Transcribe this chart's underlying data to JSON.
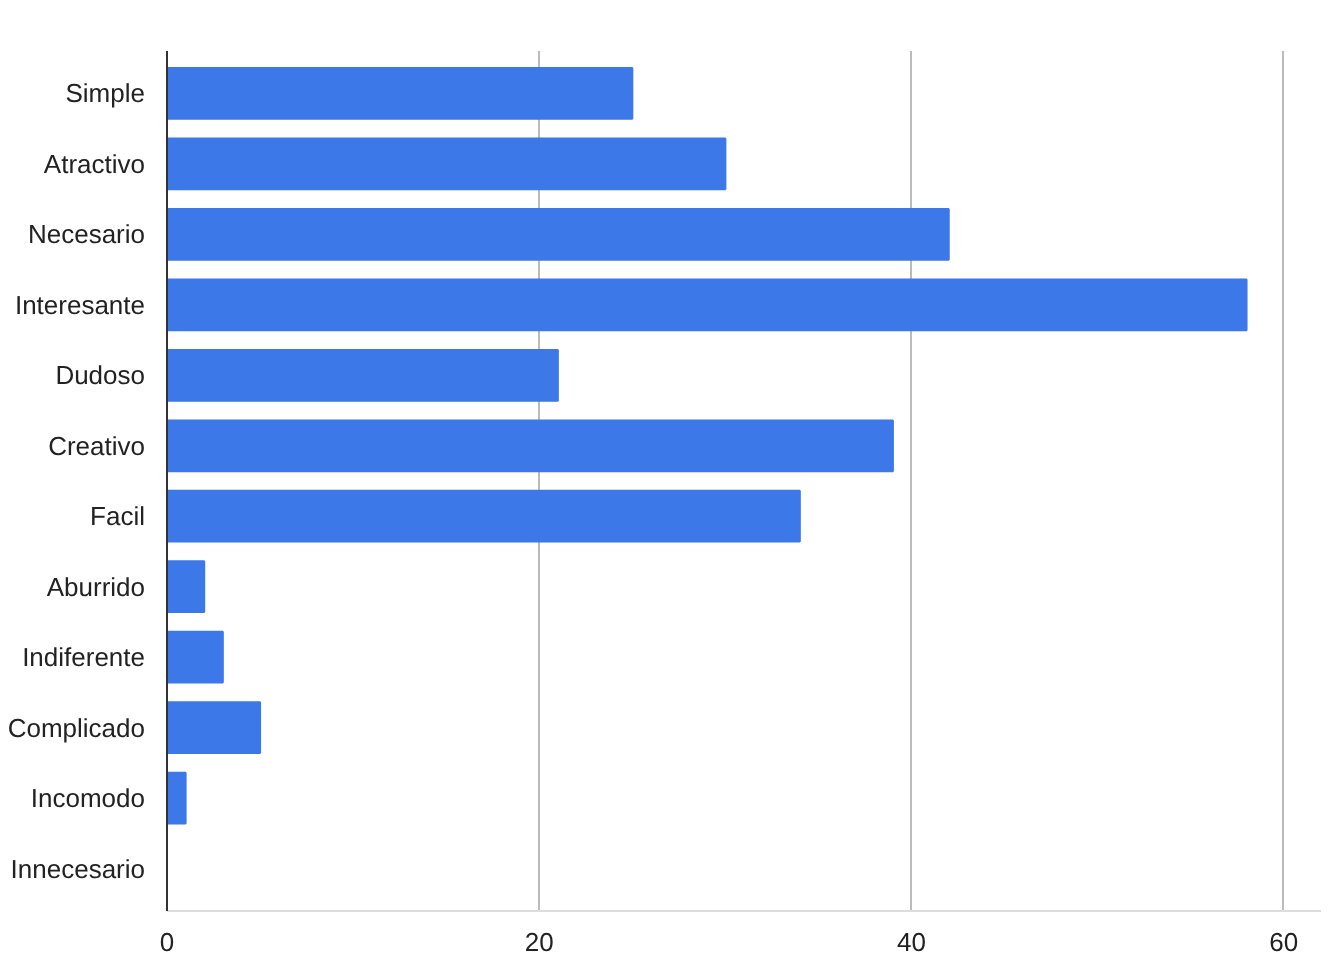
{
  "chart_data": {
    "type": "bar",
    "orientation": "horizontal",
    "categories": [
      "Simple",
      "Atractivo",
      "Necesario",
      "Interesante",
      "Dudoso",
      "Creativo",
      "Facil",
      "Aburrido",
      "Indiferente",
      "Complicado",
      "Incomodo",
      "Innecesario"
    ],
    "values": [
      25,
      30,
      42,
      58,
      21,
      39,
      34,
      2,
      3,
      5,
      1,
      0
    ],
    "color": "#3c78e8",
    "xlim": [
      0,
      62
    ],
    "xticks": [
      0,
      20,
      40,
      60
    ],
    "grid": "x"
  }
}
